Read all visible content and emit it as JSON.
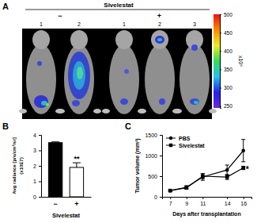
{
  "chart_data": [
    {
      "type": "image",
      "panel_label": "A",
      "title": "Sivelestat",
      "groups": [
        {
          "label": "−",
          "mice": [
            "1",
            "2"
          ]
        },
        {
          "label": "+",
          "mice": [
            "1",
            "2",
            "3"
          ]
        }
      ],
      "colorbar": {
        "range": [
          245,
          500
        ],
        "ticks": [
          250,
          300,
          350,
          400,
          450,
          500
        ],
        "label": "x10⁶"
      }
    },
    {
      "type": "bar",
      "panel_label": "B",
      "categories": [
        "−",
        "+"
      ],
      "values": [
        3.5,
        1.9
      ],
      "errors": [
        0.05,
        0.3
      ],
      "colors": [
        "#000000",
        "#ffffff"
      ],
      "ylabel": "Avg radiance [p/s/cm²/sr]",
      "ylabel_unit": "(x10E7)",
      "xlabel": "Sivelestat",
      "ylim": [
        0,
        4
      ],
      "yticks": [
        0,
        1,
        2,
        3,
        4
      ],
      "annotations": [
        {
          "text": "**",
          "category": 1
        }
      ]
    },
    {
      "type": "line",
      "panel_label": "C",
      "x": [
        7,
        9,
        11,
        14,
        16
      ],
      "xlim": [
        6,
        17
      ],
      "xticks": [
        7,
        9,
        11,
        14,
        16
      ],
      "ylim": [
        0,
        1500
      ],
      "yticks": [
        0,
        500,
        1000,
        1500
      ],
      "xlabel": "Days after transplantation",
      "ylabel": "Tumor volume (mm³)",
      "legend": "upper left",
      "series": [
        {
          "name": "PBS",
          "color": "#000000",
          "marker": "circle",
          "values": [
            150,
            230,
            480,
            650,
            1120
          ],
          "errors": [
            20,
            40,
            80,
            120,
            270
          ]
        },
        {
          "name": "Sivelestat",
          "color": "#000000",
          "marker": "square",
          "values": [
            150,
            220,
            500,
            480,
            700
          ],
          "errors": [
            20,
            30,
            60,
            60,
            40
          ]
        }
      ],
      "annotations": [
        {
          "text": "*",
          "x": 16,
          "y": 700
        }
      ]
    }
  ]
}
